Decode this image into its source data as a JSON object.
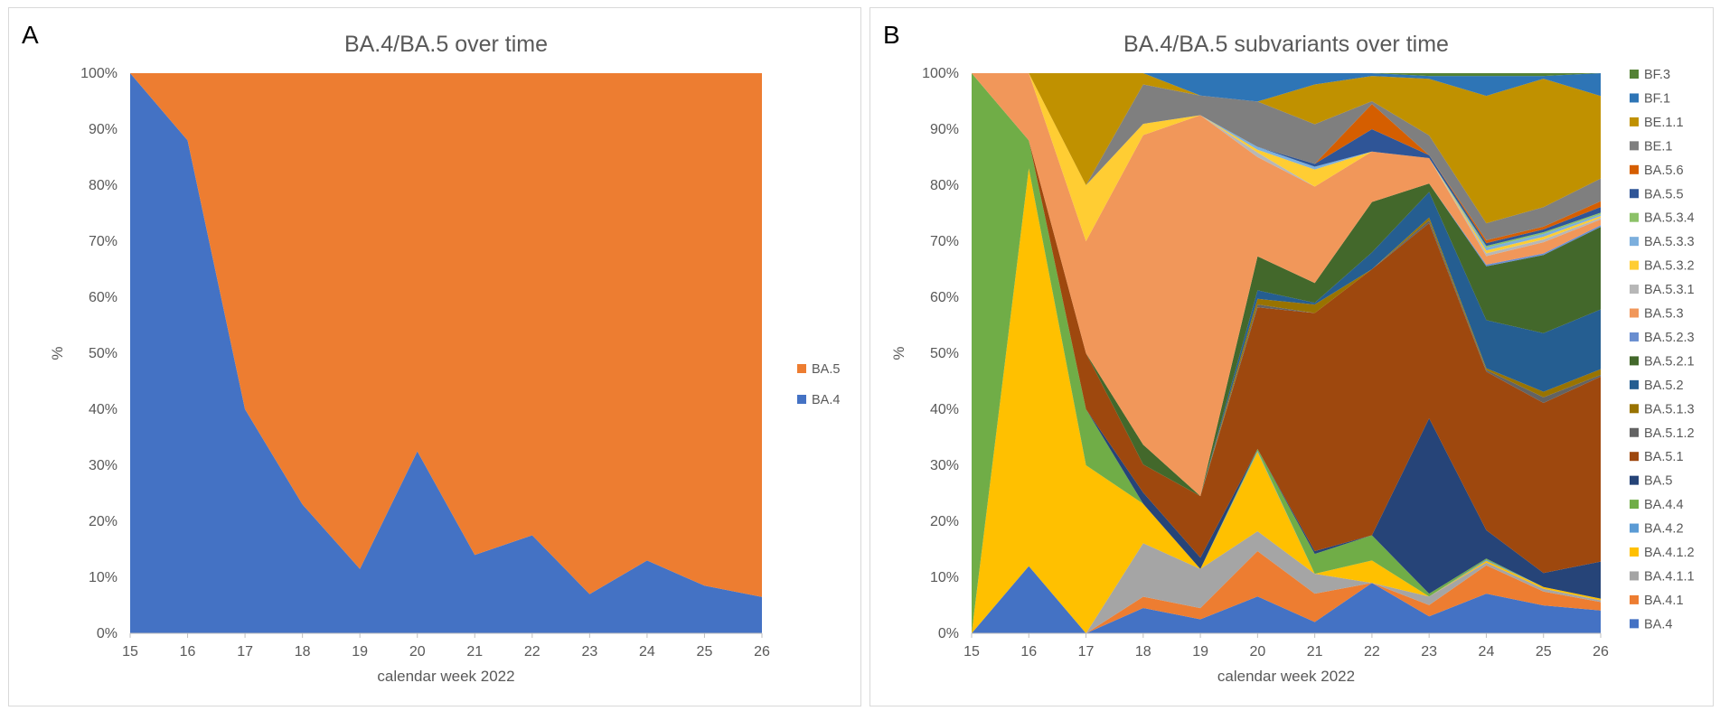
{
  "figure": {
    "panel_a_letter": "A",
    "panel_b_letter": "B"
  },
  "chart_data": [
    {
      "type": "area",
      "stacked": true,
      "normalized": true,
      "title": "BA.4/BA.5 over time",
      "xlabel": "calendar week 2022",
      "ylabel": "%",
      "x": [
        15,
        16,
        17,
        18,
        19,
        20,
        21,
        22,
        23,
        24,
        25,
        26
      ],
      "x_tick_labels": [
        "15",
        "16",
        "17",
        "18",
        "19",
        "20",
        "21",
        "22",
        "23",
        "24",
        "25",
        "26"
      ],
      "ylim": [
        0,
        100
      ],
      "y_tick_labels": [
        "0%",
        "10%",
        "20%",
        "30%",
        "40%",
        "50%",
        "60%",
        "70%",
        "80%",
        "90%",
        "100%"
      ],
      "legend_position": "right",
      "series": [
        {
          "name": "BA.4",
          "color": "#4472C4",
          "values": [
            100,
            88,
            40,
            23,
            11.5,
            32.5,
            14,
            17.5,
            7,
            13,
            8.5,
            6.5
          ]
        },
        {
          "name": "BA.5",
          "color": "#ED7D31",
          "values": [
            0,
            12,
            60,
            77,
            88.5,
            67.5,
            86,
            82.5,
            93,
            87,
            91.5,
            93.5
          ]
        }
      ]
    },
    {
      "type": "area",
      "stacked": true,
      "normalized": true,
      "title": "BA.4/BA.5 subvariants over time",
      "xlabel": "calendar week 2022",
      "ylabel": "%",
      "x": [
        15,
        16,
        17,
        18,
        19,
        20,
        21,
        22,
        23,
        24,
        25,
        26
      ],
      "x_tick_labels": [
        "15",
        "16",
        "17",
        "18",
        "19",
        "20",
        "21",
        "22",
        "23",
        "24",
        "25",
        "26"
      ],
      "ylim": [
        0,
        100
      ],
      "y_tick_labels": [
        "0%",
        "10%",
        "20%",
        "30%",
        "40%",
        "50%",
        "60%",
        "70%",
        "80%",
        "90%",
        "100%"
      ],
      "legend_position": "right",
      "series": [
        {
          "name": "BA.4",
          "color": "#4472C4",
          "values": [
            0,
            12,
            0,
            4.5,
            2.5,
            6.5,
            2,
            9,
            3,
            7,
            5,
            4
          ]
        },
        {
          "name": "BA.4.1",
          "color": "#ED7D31",
          "values": [
            0,
            0,
            0,
            2,
            2,
            8,
            5,
            0,
            2,
            5,
            2.5,
            1.5
          ]
        },
        {
          "name": "BA.4.1.1",
          "color": "#A5A5A5",
          "values": [
            0,
            0,
            0,
            9.5,
            7,
            3.5,
            3.5,
            0,
            1.5,
            0.5,
            0.5,
            0.3
          ]
        },
        {
          "name": "BA.4.1.2",
          "color": "#FFC000",
          "values": [
            0,
            71,
            30,
            7,
            0,
            14,
            0,
            4,
            0,
            0.3,
            0.3,
            0.3
          ]
        },
        {
          "name": "BA.4.2",
          "color": "#5B9BD5",
          "values": [
            0,
            0,
            0,
            0,
            0,
            0.2,
            0,
            0,
            0,
            0.2,
            0,
            0
          ]
        },
        {
          "name": "BA.4.4",
          "color": "#70AD47",
          "values": [
            100,
            5,
            10,
            0,
            0,
            0.3,
            3.5,
            4.5,
            0.5,
            0.2,
            0,
            0
          ]
        },
        {
          "name": "BA.5",
          "color": "#264478",
          "values": [
            0,
            0,
            0,
            2,
            2,
            0,
            0.5,
            0,
            31,
            5,
            2.5,
            6.5
          ]
        },
        {
          "name": "BA.5.1",
          "color": "#9E480E",
          "values": [
            0,
            0,
            10,
            5,
            11,
            25,
            42,
            47.5,
            34.5,
            28,
            30.5,
            32.5
          ]
        },
        {
          "name": "BA.5.1.2",
          "color": "#636363",
          "values": [
            0,
            0,
            0,
            0,
            0,
            0.5,
            0,
            0,
            0.5,
            0.3,
            1,
            0.3
          ]
        },
        {
          "name": "BA.5.1.3",
          "color": "#997300",
          "values": [
            0,
            0,
            0,
            0,
            0,
            1,
            1.5,
            0,
            0.5,
            0.3,
            1,
            1
          ]
        },
        {
          "name": "BA.5.2",
          "color": "#255E91",
          "values": [
            0,
            0,
            0,
            0,
            0,
            1.5,
            0.3,
            3,
            4.5,
            8.5,
            10.5,
            10.5
          ]
        },
        {
          "name": "BA.5.2.1",
          "color": "#43682B",
          "values": [
            0,
            0,
            0,
            3.5,
            0,
            6,
            3.5,
            9,
            1.5,
            9.5,
            14,
            14.5
          ]
        },
        {
          "name": "BA.5.2.3",
          "color": "#698ED0",
          "values": [
            0,
            0,
            0,
            0,
            0,
            0,
            0,
            0,
            0,
            0.3,
            0.3,
            0.3
          ]
        },
        {
          "name": "BA.5.3",
          "color": "#F1975A",
          "values": [
            0,
            12,
            20,
            55,
            68,
            17.5,
            17,
            9,
            4.5,
            1.5,
            2,
            1
          ]
        },
        {
          "name": "BA.5.3.1",
          "color": "#B7B7B7",
          "values": [
            0,
            0,
            0,
            0,
            0,
            0.8,
            0,
            0,
            0,
            0.5,
            0.5,
            0.3
          ]
        },
        {
          "name": "BA.5.3.2",
          "color": "#FFCD33",
          "values": [
            0,
            0,
            10,
            2,
            0,
            0.5,
            3,
            0,
            0,
            0.5,
            0.5,
            0.3
          ]
        },
        {
          "name": "BA.5.3.3",
          "color": "#7CAFDD",
          "values": [
            0,
            0,
            0,
            0,
            0,
            0.5,
            0.5,
            0,
            0,
            0.5,
            0.5,
            0.3
          ]
        },
        {
          "name": "BA.5.3.4",
          "color": "#8CC168",
          "values": [
            0,
            0,
            0,
            0,
            0,
            0,
            0,
            0,
            0,
            0.3,
            0.3,
            0.3
          ]
        },
        {
          "name": "BA.5.5",
          "color": "#2F5597",
          "values": [
            0,
            0,
            0,
            0,
            0,
            0,
            0.5,
            4,
            0.5,
            0.5,
            0.5,
            1
          ]
        },
        {
          "name": "BA.5.6",
          "color": "#D55E00",
          "values": [
            0,
            0,
            0,
            0,
            0,
            0,
            0,
            4.5,
            0,
            0.5,
            0.5,
            1
          ]
        },
        {
          "name": "BE.1",
          "color": "#7F7F7F",
          "values": [
            0,
            0,
            0,
            7,
            3.5,
            8,
            7,
            0.5,
            3.5,
            3,
            3.5,
            4
          ]
        },
        {
          "name": "BE.1.1",
          "color": "#C09100",
          "values": [
            0,
            0,
            20,
            2,
            0,
            0,
            7,
            4.5,
            10,
            22.5,
            23,
            14.5
          ]
        },
        {
          "name": "BF.1",
          "color": "#2E75B6",
          "values": [
            0,
            0,
            0,
            0,
            4,
            5,
            2,
            0.5,
            0.5,
            3.5,
            0.5,
            4
          ]
        },
        {
          "name": "BF.3",
          "color": "#548235",
          "values": [
            0,
            0,
            0,
            0,
            0,
            0,
            0,
            0,
            0.5,
            0.5,
            0.5,
            0
          ]
        }
      ]
    }
  ]
}
